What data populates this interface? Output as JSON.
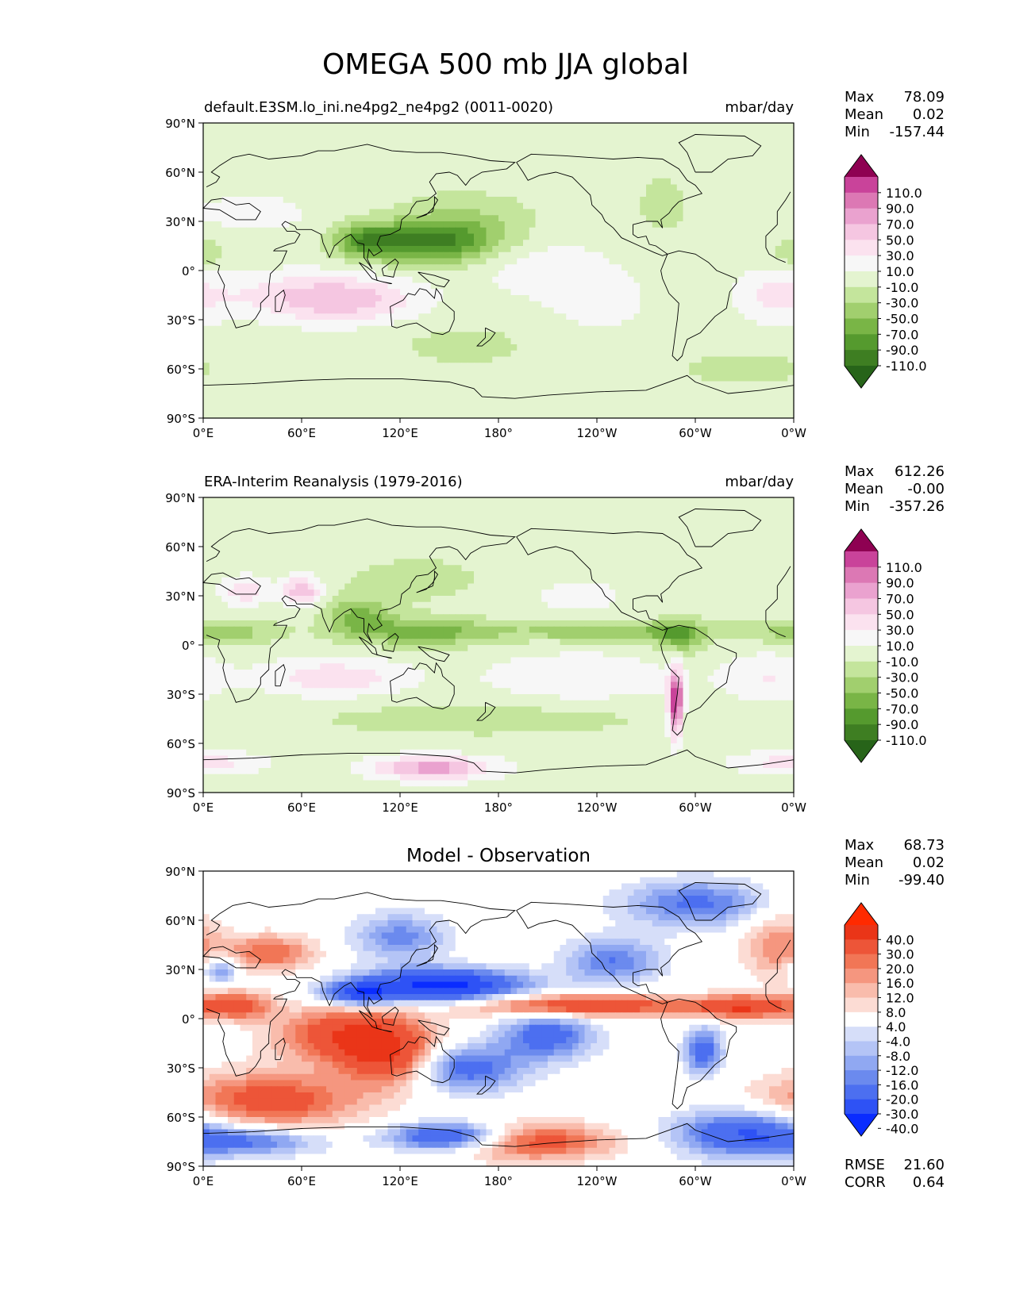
{
  "figure_title": "OMEGA 500 mb JJA global",
  "lat_ticks": [
    "90°N",
    "60°N",
    "30°N",
    "0°",
    "30°S",
    "60°S",
    "90°S"
  ],
  "lon_ticks": [
    "0°E",
    "60°E",
    "120°E",
    "180°",
    "120°W",
    "60°W",
    "0°W"
  ],
  "colors": {
    "pink_green": [
      "#276419",
      "#3e7e22",
      "#559a2e",
      "#79b546",
      "#a1cf6e",
      "#c4e59c",
      "#e4f4d0",
      "#f7f7f7",
      "#fbe2ef",
      "#f5c6e1",
      "#eaa2cf",
      "#dc78b4",
      "#c9439a",
      "#8e0152"
    ],
    "blue_red": [
      "#0a2cff",
      "#2e52f5",
      "#4c6ff0",
      "#6b8aee",
      "#90a8f2",
      "#b4c4f6",
      "#d6def9",
      "#ffffff",
      "#fcdcd4",
      "#f9bcac",
      "#f5967f",
      "#f17656",
      "#ed5538",
      "#ea3518",
      "#ff2a00"
    ]
  },
  "chart_data": [
    {
      "type": "heatmap",
      "title": "default.E3SM.lo_ini.ne4pg2_ne4pg2 (0011-0020)",
      "units": "mbar/day",
      "xlabel": "",
      "ylabel": "",
      "xlim": [
        0,
        360
      ],
      "ylim": [
        -90,
        90
      ],
      "stats": [
        {
          "label": "Max",
          "value": "78.09"
        },
        {
          "label": "Mean",
          "value": "0.02"
        },
        {
          "label": "Min",
          "value": "-157.44"
        }
      ],
      "colorbar_labels": [
        "110.0",
        "90.0",
        "70.0",
        "50.0",
        "30.0",
        "10.0",
        "-10.0",
        "-30.0",
        "-50.0",
        "-70.0",
        "-90.0",
        "-110.0"
      ],
      "cmap": "pink_green",
      "features": [
        {
          "lon": 140,
          "lat": 17,
          "slon": 28,
          "slat": 9,
          "amp": -85
        },
        {
          "lon": 100,
          "lat": 18,
          "slon": 14,
          "slat": 7,
          "amp": -70
        },
        {
          "lon": 160,
          "lat": 30,
          "slon": 30,
          "slat": 12,
          "amp": -30
        },
        {
          "lon": 90,
          "lat": -18,
          "slon": 30,
          "slat": 10,
          "amp": 55
        },
        {
          "lon": 50,
          "lat": -15,
          "slon": 30,
          "slat": 10,
          "amp": 30
        },
        {
          "lon": 200,
          "lat": 5,
          "slon": 30,
          "slat": 14,
          "amp": 18
        },
        {
          "lon": 240,
          "lat": -20,
          "slon": 30,
          "slat": 18,
          "amp": 15
        },
        {
          "lon": 350,
          "lat": -15,
          "slon": 18,
          "slat": 12,
          "amp": 35
        },
        {
          "lon": 30,
          "lat": 35,
          "slon": 25,
          "slat": 8,
          "amp": 22
        },
        {
          "lon": 280,
          "lat": 40,
          "slon": 12,
          "slat": 15,
          "amp": -18
        },
        {
          "lon": 160,
          "lat": -45,
          "slon": 40,
          "slat": 12,
          "amp": -15
        },
        {
          "lon": 330,
          "lat": -60,
          "slon": 40,
          "slat": 10,
          "amp": -15
        },
        {
          "lon": 0,
          "lat": 10,
          "slon": 10,
          "slat": 8,
          "amp": -25
        }
      ]
    },
    {
      "type": "heatmap",
      "title": "ERA-Interim Reanalysis (1979-2016)",
      "units": "mbar/day",
      "xlabel": "",
      "ylabel": "",
      "xlim": [
        0,
        360
      ],
      "ylim": [
        -90,
        90
      ],
      "stats": [
        {
          "label": "Max",
          "value": "612.26"
        },
        {
          "label": "Mean",
          "value": "-0.00"
        },
        {
          "label": "Min",
          "value": "-357.26"
        }
      ],
      "colorbar_labels": [
        "110.0",
        "90.0",
        "70.0",
        "50.0",
        "30.0",
        "10.0",
        "-10.0",
        "-30.0",
        "-50.0",
        "-70.0",
        "-90.0",
        "-110.0"
      ],
      "cmap": "pink_green",
      "features": [
        {
          "lon": 135,
          "lat": 8,
          "slon": 30,
          "slat": 6,
          "amp": -60
        },
        {
          "lon": 95,
          "lat": 18,
          "slon": 14,
          "slat": 8,
          "amp": -55
        },
        {
          "lon": 250,
          "lat": 8,
          "slon": 45,
          "slat": 4,
          "amp": -50
        },
        {
          "lon": 10,
          "lat": 8,
          "slon": 25,
          "slat": 5,
          "amp": -45
        },
        {
          "lon": 290,
          "lat": 5,
          "slon": 10,
          "slat": 8,
          "amp": -55
        },
        {
          "lon": 288,
          "lat": -35,
          "slon": 3,
          "slat": 14,
          "amp": 140
        },
        {
          "lon": 60,
          "lat": 33,
          "slon": 8,
          "slat": 6,
          "amp": 70
        },
        {
          "lon": 25,
          "lat": 33,
          "slon": 10,
          "slat": 6,
          "amp": 45
        },
        {
          "lon": 140,
          "lat": -75,
          "slon": 25,
          "slat": 5,
          "amp": 80
        },
        {
          "lon": 80,
          "lat": -20,
          "slon": 30,
          "slat": 8,
          "amp": 45
        },
        {
          "lon": 230,
          "lat": -20,
          "slon": 40,
          "slat": 10,
          "amp": 30
        },
        {
          "lon": 345,
          "lat": -20,
          "slon": 20,
          "slat": 10,
          "amp": 30
        },
        {
          "lon": 170,
          "lat": -45,
          "slon": 80,
          "slat": 8,
          "amp": -20
        },
        {
          "lon": 0,
          "lat": -72,
          "slon": 25,
          "slat": 5,
          "amp": 40
        },
        {
          "lon": 230,
          "lat": 30,
          "slon": 20,
          "slat": 8,
          "amp": 20
        },
        {
          "lon": 130,
          "lat": 40,
          "slon": 30,
          "slat": 10,
          "amp": -20
        }
      ]
    },
    {
      "type": "heatmap",
      "title": "Model - Observation",
      "units": "",
      "xlabel": "",
      "ylabel": "",
      "xlim": [
        0,
        360
      ],
      "ylim": [
        -90,
        90
      ],
      "stats": [
        {
          "label": "Max",
          "value": "68.73"
        },
        {
          "label": "Mean",
          "value": "0.02"
        },
        {
          "label": "Min",
          "value": "-99.40"
        }
      ],
      "colorbar_labels": [
        "40.0",
        "30.0",
        "20.0",
        "16.0",
        "12.0",
        "8.0",
        "4.0",
        "-4.0",
        "-8.0",
        "-12.0",
        "-16.0",
        "-20.0",
        "-30.0",
        "-40.0"
      ],
      "cmap": "blue_red",
      "metrics": [
        {
          "label": "RMSE",
          "value": "21.60"
        },
        {
          "label": "CORR",
          "value": "0.64"
        }
      ],
      "features": [
        {
          "lon": 145,
          "lat": 20,
          "slon": 35,
          "slat": 7,
          "amp": -45
        },
        {
          "lon": 95,
          "lat": 15,
          "slon": 15,
          "slat": 5,
          "amp": -30
        },
        {
          "lon": 230,
          "lat": 8,
          "slon": 50,
          "slat": 5,
          "amp": 30
        },
        {
          "lon": 330,
          "lat": 7,
          "slon": 20,
          "slat": 5,
          "amp": 28
        },
        {
          "lon": 20,
          "lat": 8,
          "slon": 15,
          "slat": 6,
          "amp": 25
        },
        {
          "lon": 90,
          "lat": -10,
          "slon": 30,
          "slat": 12,
          "amp": 30
        },
        {
          "lon": 115,
          "lat": -25,
          "slon": 20,
          "slat": 12,
          "amp": 25
        },
        {
          "lon": 160,
          "lat": -30,
          "slon": 25,
          "slat": 10,
          "amp": -25
        },
        {
          "lon": 210,
          "lat": -10,
          "slon": 20,
          "slat": 10,
          "amp": -25
        },
        {
          "lon": 305,
          "lat": -20,
          "slon": 8,
          "slat": 10,
          "amp": -25
        },
        {
          "lon": 40,
          "lat": -50,
          "slon": 40,
          "slat": 12,
          "amp": 25
        },
        {
          "lon": 150,
          "lat": -72,
          "slon": 25,
          "slat": 6,
          "amp": -35
        },
        {
          "lon": 30,
          "lat": -75,
          "slon": 30,
          "slat": 6,
          "amp": -20
        },
        {
          "lon": 200,
          "lat": -75,
          "slon": 35,
          "slat": 8,
          "amp": 25
        },
        {
          "lon": 330,
          "lat": -70,
          "slon": 30,
          "slat": 10,
          "amp": -30
        },
        {
          "lon": 250,
          "lat": 35,
          "slon": 20,
          "slat": 10,
          "amp": -20
        },
        {
          "lon": 300,
          "lat": 70,
          "slon": 30,
          "slat": 10,
          "amp": -22
        },
        {
          "lon": 40,
          "lat": 40,
          "slon": 20,
          "slat": 8,
          "amp": 20
        },
        {
          "lon": 120,
          "lat": 50,
          "slon": 20,
          "slat": 10,
          "amp": -18
        },
        {
          "lon": 350,
          "lat": 45,
          "slon": 15,
          "slat": 15,
          "amp": 15
        },
        {
          "lon": 10,
          "lat": 30,
          "slon": 8,
          "slat": 6,
          "amp": -20
        }
      ]
    }
  ]
}
